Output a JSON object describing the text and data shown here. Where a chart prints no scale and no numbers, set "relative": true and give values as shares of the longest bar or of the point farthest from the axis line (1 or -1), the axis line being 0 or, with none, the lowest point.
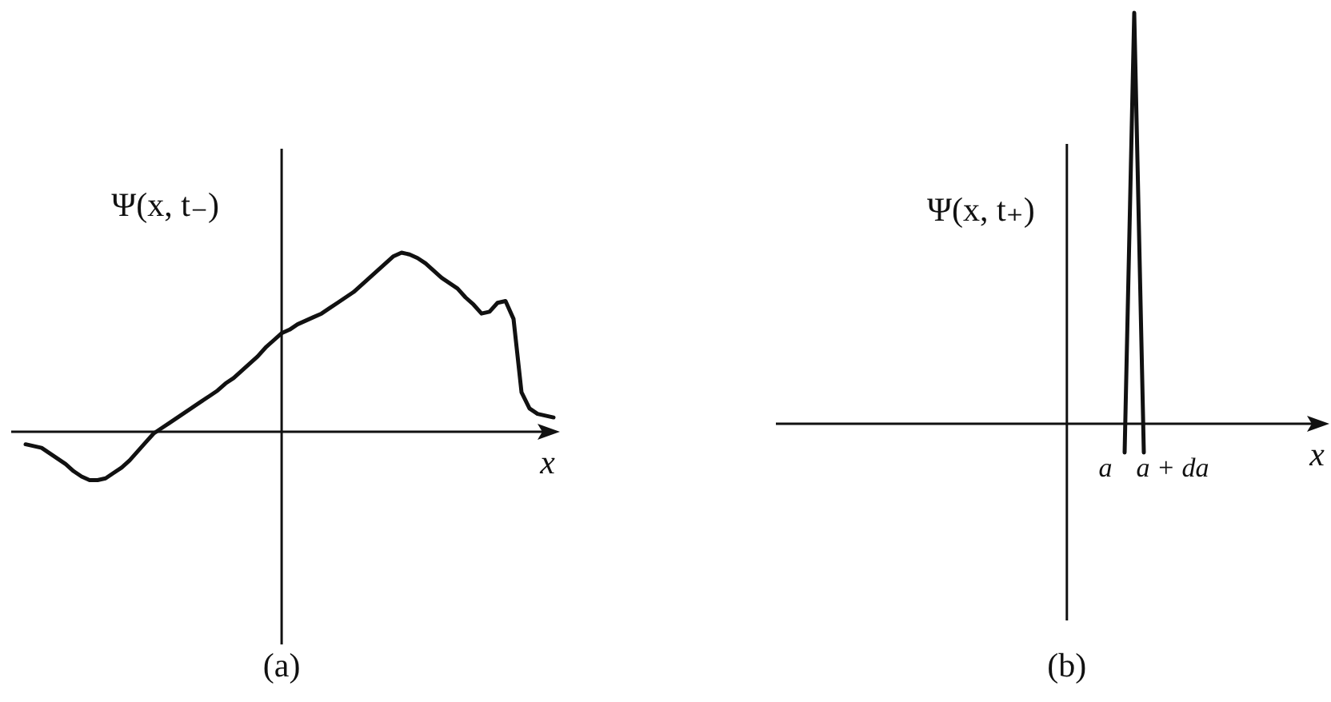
{
  "chart_data": [
    {
      "type": "line",
      "title": "(a)",
      "xlabel": "x",
      "ylabel": "Ψ(x, t₋)",
      "relative": true,
      "color": "#111111",
      "categories": [
        null,
        null,
        null,
        null,
        null,
        null,
        null,
        null,
        null,
        null,
        null,
        null,
        null,
        null,
        null,
        null,
        null,
        null,
        null,
        null,
        null,
        null,
        null,
        null,
        null,
        null,
        null,
        null,
        null,
        null,
        null,
        null,
        null,
        null,
        null,
        null,
        null,
        null,
        null,
        null,
        null,
        null,
        null,
        null,
        null,
        null,
        null,
        null,
        null,
        null,
        null,
        null,
        null,
        null,
        null,
        null,
        null,
        null,
        null,
        null,
        null,
        null,
        null,
        null,
        null,
        null,
        null
      ],
      "values": [
        -0.07,
        -0.08,
        -0.09,
        -0.12,
        -0.15,
        -0.18,
        -0.22,
        -0.25,
        -0.27,
        -0.27,
        -0.26,
        -0.23,
        -0.2,
        -0.16,
        -0.11,
        -0.06,
        -0.01,
        0.02,
        0.05,
        0.08,
        0.11,
        0.14,
        0.17,
        0.2,
        0.23,
        0.27,
        0.3,
        0.34,
        0.38,
        0.42,
        0.47,
        0.51,
        0.55,
        0.57,
        0.6,
        0.62,
        0.64,
        0.66,
        0.69,
        0.72,
        0.75,
        0.78,
        0.82,
        0.86,
        0.9,
        0.94,
        0.98,
        1,
        0.99,
        0.97,
        0.94,
        0.9,
        0.86,
        0.83,
        0.8,
        0.75,
        0.71,
        0.66,
        0.67,
        0.72,
        0.73,
        0.63,
        0.22,
        0.13,
        0.1,
        0.09,
        0.08
      ]
    },
    {
      "type": "line",
      "title": "(b)",
      "xlabel": "x",
      "ylabel": "Ψ(x, t₊)",
      "relative": true,
      "color": "#111111",
      "tick_labels": "x",
      "categories": [
        null,
        null,
        null,
        null,
        null,
        null,
        null,
        null,
        null,
        null,
        null,
        null,
        null,
        null,
        null,
        null,
        null,
        null,
        null,
        null,
        null,
        null,
        null,
        null,
        null,
        null,
        null,
        null,
        null,
        null,
        null,
        null,
        null,
        null,
        "a",
        null,
        null,
        null,
        null,
        null,
        null,
        "a + da",
        null,
        null,
        null,
        null,
        null,
        null,
        null,
        null,
        null,
        null,
        null,
        null,
        null,
        null,
        null,
        null
      ],
      "values": [
        null,
        null,
        null,
        null,
        null,
        null,
        null,
        null,
        null,
        null,
        null,
        null,
        null,
        null,
        null,
        null,
        null,
        null,
        null,
        null,
        null,
        null,
        null,
        null,
        null,
        null,
        null,
        null,
        null,
        null,
        null,
        null,
        null,
        null,
        null,
        null,
        -0.07,
        1,
        -0.07,
        null,
        null,
        null,
        null,
        null,
        null,
        null,
        null,
        null,
        null,
        null,
        null,
        null,
        null,
        null,
        null,
        null,
        null,
        null
      ]
    }
  ]
}
